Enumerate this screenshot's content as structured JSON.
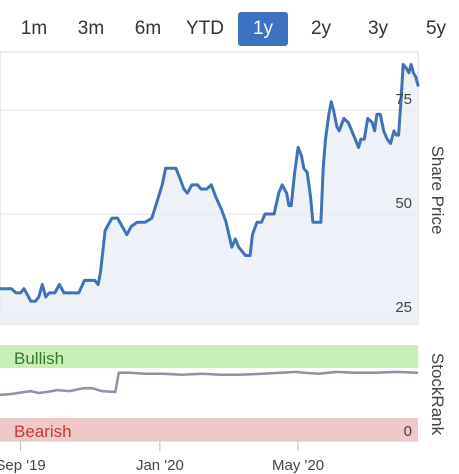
{
  "range_selector": {
    "options": [
      "1m",
      "3m",
      "6m",
      "YTD",
      "1y",
      "2y",
      "3y",
      "5y"
    ],
    "active": "1y",
    "accent_color": "#3b73c2"
  },
  "chart_data": [
    {
      "type": "line",
      "ylabel": "Share Price",
      "y_ticks": [
        25,
        50,
        75
      ],
      "ylim": [
        23.5,
        89
      ],
      "x_ticks": [
        "Sep '19",
        "Jan '20",
        "May '20"
      ],
      "x_tick_dates": [
        "2019-09-01",
        "2020-01-01",
        "2020-05-01"
      ],
      "xlim": [
        "2019-08-14",
        "2020-08-14"
      ],
      "grid": true,
      "line_color": "#4072b8",
      "series": [
        {
          "x": [
            "2019-08-14",
            "2019-08-24",
            "2019-08-28",
            "2019-09-01",
            "2019-09-04",
            "2019-09-08",
            "2019-09-10",
            "2019-09-14",
            "2019-09-17",
            "2019-09-20",
            "2019-09-23",
            "2019-09-26",
            "2019-10-01",
            "2019-10-05",
            "2019-10-09",
            "2019-10-15",
            "2019-10-22",
            "2019-10-27",
            "2019-10-30",
            "2019-11-02",
            "2019-11-05",
            "2019-11-08",
            "2019-11-10",
            "2019-11-14",
            "2019-11-20",
            "2019-11-25",
            "2019-12-03",
            "2019-12-07",
            "2019-12-12",
            "2019-12-15",
            "2019-12-19",
            "2019-12-25",
            "2020-01-03",
            "2020-01-06",
            "2020-01-09",
            "2020-01-15",
            "2020-01-18",
            "2020-01-22",
            "2020-01-25",
            "2020-01-29",
            "2020-02-03",
            "2020-02-06",
            "2020-02-11",
            "2020-02-15",
            "2020-02-19",
            "2020-02-24",
            "2020-02-28",
            "2020-03-04",
            "2020-03-07",
            "2020-03-10",
            "2020-03-13",
            "2020-03-16",
            "2020-03-20",
            "2020-03-22",
            "2020-03-26",
            "2020-03-30",
            "2020-04-02",
            "2020-04-06",
            "2020-04-10",
            "2020-04-14",
            "2020-04-17",
            "2020-04-21",
            "2020-04-23",
            "2020-04-25",
            "2020-04-28",
            "2020-05-01",
            "2020-05-04",
            "2020-05-06",
            "2020-05-09",
            "2020-05-12",
            "2020-05-14",
            "2020-05-17",
            "2020-05-21",
            "2020-05-23",
            "2020-05-25",
            "2020-05-28",
            "2020-05-30",
            "2020-06-01",
            "2020-06-04",
            "2020-06-06",
            "2020-06-10",
            "2020-06-14",
            "2020-06-17",
            "2020-06-20",
            "2020-06-23",
            "2020-06-25",
            "2020-06-28",
            "2020-07-01",
            "2020-07-05",
            "2020-07-07",
            "2020-07-09",
            "2020-07-12",
            "2020-07-15",
            "2020-07-18",
            "2020-07-21",
            "2020-07-24",
            "2020-07-26",
            "2020-07-28",
            "2020-07-30",
            "2020-08-01",
            "2020-08-04",
            "2020-08-06",
            "2020-08-08",
            "2020-08-10",
            "2020-08-12",
            "2020-08-14"
          ],
          "y": [
            32,
            32,
            31,
            31,
            32,
            30,
            29,
            29,
            30,
            33,
            30,
            31,
            31,
            33,
            31,
            31,
            31,
            34,
            34,
            34,
            34,
            33,
            36,
            46,
            49,
            49,
            45,
            47,
            48,
            48,
            48,
            49,
            57,
            61,
            61,
            61,
            59,
            56,
            55,
            57,
            57,
            56,
            56,
            57,
            54,
            51,
            48,
            42,
            44,
            42,
            41,
            40,
            40,
            45,
            48,
            48,
            50,
            50,
            50,
            55,
            57,
            55,
            52,
            52,
            60,
            66,
            64,
            61,
            60,
            54,
            48,
            48,
            48,
            61,
            68,
            74,
            77,
            75,
            71,
            70,
            73,
            72,
            70,
            68,
            66,
            68,
            68,
            73,
            72,
            70,
            74,
            74,
            70,
            68,
            67,
            70,
            69,
            69,
            77,
            86,
            85,
            84,
            86,
            84,
            83,
            81
          ]
        }
      ]
    },
    {
      "type": "line",
      "ylabel": "StockRank",
      "y_ticks": [
        0
      ],
      "zones": [
        {
          "label": "Bullish",
          "color": "#c9efb4",
          "text_color": "#2f7d2f"
        },
        {
          "label": "Bearish",
          "color": "#f2c7c7",
          "text_color": "#c23b3b"
        }
      ],
      "line_color": "#8a94a6",
      "series": [
        {
          "x": [
            "2019-08-14",
            "2019-08-24",
            "2019-09-10",
            "2019-09-17",
            "2019-09-24",
            "2019-10-03",
            "2019-10-14",
            "2019-10-26",
            "2019-11-03",
            "2019-11-11",
            "2019-11-23",
            "2019-11-26",
            "2019-12-06",
            "2019-12-19",
            "2020-01-04",
            "2020-01-20",
            "2020-02-07",
            "2020-02-23",
            "2020-03-09",
            "2020-03-31",
            "2020-04-16",
            "2020-04-29",
            "2020-05-06",
            "2020-05-19",
            "2020-06-04",
            "2020-06-20",
            "2020-07-07",
            "2020-07-26",
            "2020-08-14"
          ],
          "y": [
            48,
            49,
            52,
            50,
            51,
            53,
            52,
            55,
            55,
            52,
            51,
            71,
            71,
            70,
            70,
            69,
            70,
            69,
            69,
            70,
            71,
            72,
            71,
            70,
            72,
            71,
            71,
            72,
            71
          ]
        }
      ]
    }
  ]
}
